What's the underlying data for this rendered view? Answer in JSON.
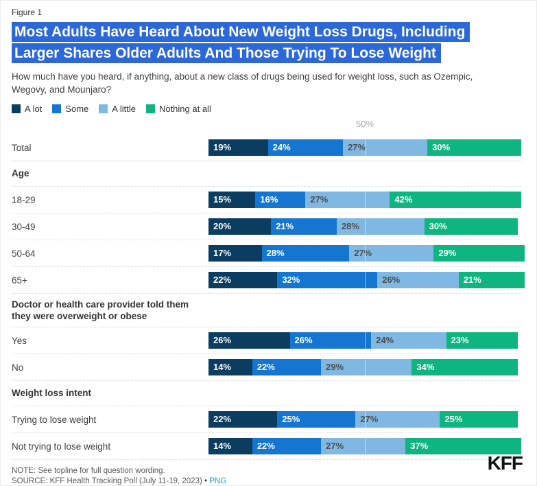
{
  "figure_label": "Figure 1",
  "title_lines": [
    "Most Adults Have Heard About New Weight Loss Drugs, Including",
    "Larger Shares Older Adults And Those Trying To Lose Weight"
  ],
  "subtitle": "How much have you heard, if anything, about a new class of drugs being used for weight loss, such as Ozempic, Wegovy, and Mounjaro?",
  "colors": {
    "title_highlight": "#2d68d8",
    "link_blue": "#1b9ae0",
    "tick_gray": "#a6a6a6"
  },
  "legend": [
    {
      "label": "A lot",
      "color": "#0b3d61",
      "label_color": "#ffffff"
    },
    {
      "label": "Some",
      "color": "#1576d2",
      "label_color": "#ffffff"
    },
    {
      "label": "A little",
      "color": "#7fb9e3",
      "label_color": "#4d4d4d"
    },
    {
      "label": "Nothing at all",
      "color": "#0fb57e",
      "label_color": "#ffffff"
    }
  ],
  "axis": {
    "tick_label": "50%"
  },
  "rows": [
    {
      "type": "bar",
      "label": "Total",
      "values": [
        19,
        24,
        27,
        30
      ]
    },
    {
      "type": "header",
      "label": "Age"
    },
    {
      "type": "bar",
      "label": "18-29",
      "values": [
        15,
        16,
        27,
        42
      ]
    },
    {
      "type": "bar",
      "label": "30-49",
      "values": [
        20,
        21,
        28,
        30
      ]
    },
    {
      "type": "bar",
      "label": "50-64",
      "values": [
        17,
        28,
        27,
        29
      ]
    },
    {
      "type": "bar",
      "label": "65+",
      "values": [
        22,
        32,
        26,
        21
      ]
    },
    {
      "type": "header",
      "label": "Doctor or health care provider told them they were overweight or obese"
    },
    {
      "type": "bar",
      "label": "Yes",
      "values": [
        26,
        26,
        24,
        23
      ]
    },
    {
      "type": "bar",
      "label": "No",
      "values": [
        14,
        22,
        29,
        34
      ]
    },
    {
      "type": "header",
      "label": "Weight loss intent"
    },
    {
      "type": "bar",
      "label": "Trying to lose weight",
      "values": [
        22,
        25,
        27,
        25
      ]
    },
    {
      "type": "bar",
      "label": "Not trying to lose weight",
      "values": [
        14,
        22,
        27,
        37
      ]
    }
  ],
  "footer": {
    "note": "NOTE: See topline for full question wording.",
    "source_prefix": "SOURCE: KFF Health Tracking Poll (July 11-19, 2023)",
    "separator": "•",
    "link_label": "PNG"
  },
  "logo_text": "KFF",
  "chart_data": {
    "type": "bar",
    "stacked": true,
    "orientation": "horizontal",
    "title": "Most Adults Have Heard About New Weight Loss Drugs, Including Larger Shares Older Adults And Those Trying To Lose Weight",
    "subtitle": "How much have you heard, if anything, about a new class of drugs being used for weight loss, such as Ozempic, Wegovy, and Mounjaro?",
    "xlim": [
      0,
      100
    ],
    "x_tick_labels": [
      "50%"
    ],
    "legend_position": "top",
    "units": "%",
    "categories": [
      "Total",
      "18-29",
      "30-49",
      "50-64",
      "65+",
      "Yes",
      "No",
      "Trying to lose weight",
      "Not trying to lose weight"
    ],
    "sections": [
      {
        "header": "Age",
        "categories": [
          "18-29",
          "30-49",
          "50-64",
          "65+"
        ]
      },
      {
        "header": "Doctor or health care provider told them they were overweight or obese",
        "categories": [
          "Yes",
          "No"
        ]
      },
      {
        "header": "Weight loss intent",
        "categories": [
          "Trying to lose weight",
          "Not trying to lose weight"
        ]
      }
    ],
    "series": [
      {
        "name": "A lot",
        "color": "#0b3d61",
        "values": [
          19,
          15,
          20,
          17,
          22,
          26,
          14,
          22,
          14
        ]
      },
      {
        "name": "Some",
        "color": "#1576d2",
        "values": [
          24,
          16,
          21,
          28,
          32,
          26,
          22,
          25,
          22
        ]
      },
      {
        "name": "A little",
        "color": "#7fb9e3",
        "values": [
          27,
          27,
          28,
          27,
          26,
          24,
          29,
          27,
          27
        ]
      },
      {
        "name": "Nothing at all",
        "color": "#0fb57e",
        "values": [
          30,
          42,
          30,
          29,
          21,
          23,
          34,
          25,
          37
        ]
      }
    ]
  }
}
